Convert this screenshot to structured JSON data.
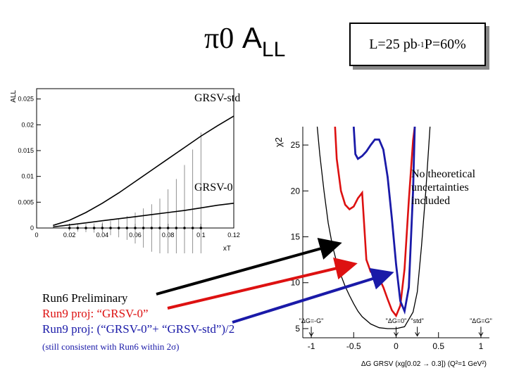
{
  "slide": {
    "title_pi": "π0",
    "title_a": "A",
    "title_sub": "LL",
    "lumi_prefix": "L=25 pb",
    "lumi_sup": "-1",
    "lumi_suffix": " P=60%",
    "grsv_std_label": "GRSV-std",
    "grsv_zero_label": "GRSV-0",
    "theory_note": [
      "No theoretical",
      "uncertainties",
      "included"
    ],
    "legend": {
      "run6": "Run6 Preliminary",
      "run9_zero": "Run9 proj: “GRSV-0”",
      "run9_avg": "Run9 proj: (“GRSV-0”+ “GRSV-std”)/2",
      "consistent_prefix": "(still consistent with Run6 within 2",
      "consistent_sigma": "σ",
      "consistent_suffix": ")"
    },
    "colors": {
      "run6": "#000000",
      "run9_zero": "#dd1111",
      "run9_avg": "#1a1aa8"
    }
  },
  "chart_data": [
    {
      "type": "line",
      "xlabel": "xT",
      "ylabel": "ALL",
      "xlim": [
        0,
        0.12
      ],
      "ylim": [
        0,
        0.027
      ],
      "x_ticks": [
        0,
        0.02,
        0.04,
        0.06,
        0.08,
        0.1,
        0.12
      ],
      "x_tick_labels": [
        "0",
        "0.02",
        "0.04",
        "0.06",
        "0.08",
        "0.1",
        "0.12"
      ],
      "y_ticks": [
        0,
        0.005,
        0.01,
        0.015,
        0.02,
        0.025
      ],
      "y_tick_labels": [
        "0",
        "0.005",
        "0.01",
        "0.015",
        "0.02",
        "0.025"
      ],
      "series": [
        {
          "name": "GRSV-std",
          "x": [
            0.01,
            0.02,
            0.03,
            0.04,
            0.05,
            0.06,
            0.07,
            0.08,
            0.09,
            0.1,
            0.11,
            0.12
          ],
          "y": [
            0.0005,
            0.0015,
            0.003,
            0.0048,
            0.0068,
            0.009,
            0.0112,
            0.0134,
            0.0156,
            0.0178,
            0.0198,
            0.0217
          ]
        },
        {
          "name": "GRSV-0",
          "x": [
            0.01,
            0.02,
            0.03,
            0.04,
            0.05,
            0.06,
            0.07,
            0.08,
            0.09,
            0.1,
            0.11,
            0.12
          ],
          "y": [
            0.0002,
            0.0006,
            0.001,
            0.0014,
            0.0018,
            0.0022,
            0.0026,
            0.003,
            0.0034,
            0.0039,
            0.0044,
            0.0048
          ]
        }
      ],
      "points": {
        "x": [
          0.02,
          0.025,
          0.03,
          0.035,
          0.04,
          0.045,
          0.05,
          0.055,
          0.06,
          0.065,
          0.07,
          0.075,
          0.08,
          0.085,
          0.09,
          0.095,
          0.1
        ],
        "y": [
          0,
          0,
          0,
          0,
          0,
          0,
          0,
          0,
          0,
          0,
          0,
          0,
          0,
          0,
          0,
          0,
          0
        ],
        "err": [
          0.0006,
          0.0007,
          0.0008,
          0.0009,
          0.0011,
          0.0014,
          0.0018,
          0.0023,
          0.003,
          0.0038,
          0.0046,
          0.0057,
          0.0075,
          0.0095,
          0.0122,
          0.0152,
          0.0185
        ]
      }
    },
    {
      "type": "line",
      "xlabel": "ΔG GRSV (xg[0.02 → 0.3]) (Q²=1 GeV²)",
      "ylabel": "χ2",
      "xlim": [
        -1.1,
        1.1
      ],
      "ylim": [
        4,
        27
      ],
      "x_ticks": [
        -1,
        -0.5,
        0,
        0.5,
        1
      ],
      "x_tick_labels": [
        "-1",
        "-0.5",
        "0",
        "0.5",
        "1"
      ],
      "y_ticks": [
        5,
        10,
        15,
        20,
        25
      ],
      "y_tick_labels": [
        "5",
        "10",
        "15",
        "20",
        "25"
      ],
      "markers": [
        {
          "label": "\"ΔG=-G\"",
          "x": -1.0
        },
        {
          "label": "\"ΔG=0\"",
          "x": 0.0
        },
        {
          "label": "\"std\"",
          "x": 0.25
        },
        {
          "label": "\"ΔG=G\"",
          "x": 1.0
        }
      ],
      "series": [
        {
          "name": "Run6 Preliminary",
          "x": [
            -0.93,
            -0.9,
            -0.85,
            -0.8,
            -0.75,
            -0.7,
            -0.65,
            -0.6,
            -0.55,
            -0.5,
            -0.45,
            -0.4,
            -0.3,
            -0.2,
            -0.1,
            0.0,
            0.1,
            0.2,
            0.25,
            0.3,
            0.35,
            0.4
          ],
          "y": [
            27,
            24,
            20,
            16.5,
            14,
            12.2,
            10.8,
            9.6,
            8.6,
            7.7,
            6.9,
            6.3,
            5.5,
            5.1,
            5.0,
            5.0,
            5.2,
            6.8,
            9,
            14,
            20,
            27
          ]
        },
        {
          "name": "Run9 proj: “GRSV-0”",
          "x": [
            -0.72,
            -0.7,
            -0.65,
            -0.6,
            -0.55,
            -0.5,
            -0.45,
            -0.4,
            -0.35,
            -0.3,
            -0.25,
            -0.2,
            -0.15,
            -0.1,
            -0.05,
            0.0,
            0.05,
            0.1,
            0.15,
            0.2,
            0.22
          ],
          "y": [
            27,
            23.5,
            20,
            18.5,
            18,
            18.3,
            19.2,
            19.8,
            12.5,
            11.2,
            10.9,
            10.5,
            9.5,
            8.2,
            7,
            6.4,
            7.5,
            11.5,
            19,
            25.5,
            27
          ]
        },
        {
          "name": "Run9 proj: (“GRSV-0”+ “GRSV-std”)/2",
          "x": [
            -0.5,
            -0.48,
            -0.45,
            -0.4,
            -0.35,
            -0.3,
            -0.25,
            -0.2,
            -0.15,
            -0.1,
            -0.05,
            0.0,
            0.05,
            0.1,
            0.15,
            0.2,
            0.22
          ],
          "y": [
            27,
            24,
            23.5,
            23.8,
            24.3,
            25.0,
            25.6,
            25.6,
            24.5,
            21.5,
            17,
            12,
            8,
            6.9,
            9.5,
            20,
            27
          ]
        }
      ]
    }
  ]
}
